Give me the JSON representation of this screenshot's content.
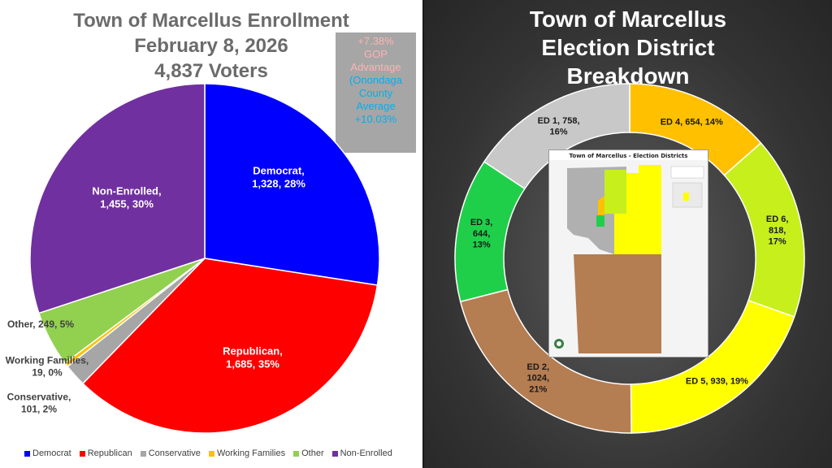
{
  "left": {
    "title_lines": [
      "Town of Marcellus Enrollment",
      "February 8, 2026",
      "4,837 Voters"
    ],
    "callout": {
      "gop_lines": [
        "+7.38%",
        "GOP",
        "Advantage"
      ],
      "county_lines": [
        "(Onondaga",
        "County",
        "Average",
        "+10.03%"
      ]
    }
  },
  "right": {
    "title_lines": [
      "Town of Marcellus",
      "Election District",
      "Breakdown"
    ],
    "map_title": "Town of Marcellus - Election Districts"
  },
  "chart_data": [
    {
      "type": "pie",
      "title": "Town of Marcellus Enrollment February 8, 2026 4,837 Voters",
      "start_angle_deg": 0,
      "legend_position": "bottom",
      "slices": [
        {
          "name": "Democrat",
          "value": 1328,
          "percent": "28%",
          "color": "#0000ff",
          "label_lines": [
            "Democrat,",
            "1,328, 28%"
          ],
          "label_color": "#ffffff"
        },
        {
          "name": "Republican",
          "value": 1685,
          "percent": "35%",
          "color": "#ff0000",
          "label_lines": [
            "Republican,",
            "1,685, 35%"
          ],
          "label_color": "#ffffff"
        },
        {
          "name": "Conservative",
          "value": 101,
          "percent": "2%",
          "color": "#a6a6a6",
          "label_lines": [
            "Conservative,",
            "101, 2%"
          ],
          "label_color": "#404040"
        },
        {
          "name": "Working Families",
          "value": 19,
          "percent": "0%",
          "color": "#ffc000",
          "label_lines": [
            "Working Families,",
            "19, 0%"
          ],
          "label_color": "#404040"
        },
        {
          "name": "Other",
          "value": 249,
          "percent": "5%",
          "color": "#92d050",
          "label_lines": [
            "Other, 249, 5%"
          ],
          "label_color": "#404040"
        },
        {
          "name": "Non-Enrolled",
          "value": 1455,
          "percent": "30%",
          "color": "#7030a0",
          "label_lines": [
            "Non-Enrolled,",
            "1,455, 30%"
          ],
          "label_color": "#ffffff"
        }
      ]
    },
    {
      "type": "pie",
      "title": "Town of Marcellus Election District Breakdown",
      "variant": "doughnut",
      "start_angle_deg": 0,
      "slices": [
        {
          "name": "ED 4",
          "value": 654,
          "percent": "14%",
          "color": "#ffc000",
          "label_lines": [
            "ED 4, 654, 14%"
          ]
        },
        {
          "name": "ED 6",
          "value": 818,
          "percent": "17%",
          "color": "#c6ef1c",
          "label_lines": [
            "ED 6,",
            "818,",
            "17%"
          ]
        },
        {
          "name": "ED 5",
          "value": 939,
          "percent": "19%",
          "color": "#ffff00",
          "label_lines": [
            "ED 5, 939, 19%"
          ]
        },
        {
          "name": "ED 2",
          "value": 1024,
          "percent": "21%",
          "color": "#b57d52",
          "label_lines": [
            "ED 2,",
            "1024,",
            "21%"
          ]
        },
        {
          "name": "ED 3",
          "value": 644,
          "percent": "13%",
          "color": "#1fcf4a",
          "label_lines": [
            "ED 3,",
            "644,",
            "13%"
          ]
        },
        {
          "name": "ED 1",
          "value": 758,
          "percent": "16%",
          "color": "#c8c8c8",
          "label_lines": [
            "ED 1, 758,",
            "16%"
          ]
        }
      ]
    }
  ]
}
